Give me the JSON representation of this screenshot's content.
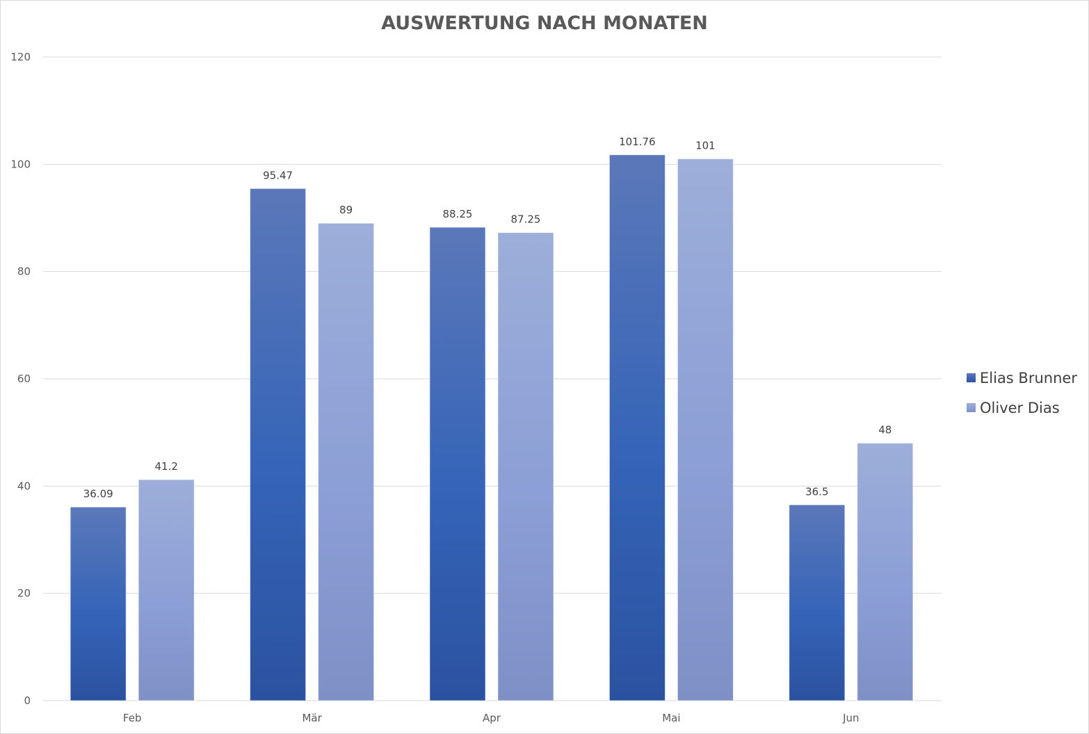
{
  "chart_data": {
    "type": "bar",
    "title": "AUSWERTUNG NACH MONATEN",
    "categories": [
      "Feb",
      "Mär",
      "Apr",
      "Mai",
      "Jun"
    ],
    "series": [
      {
        "name": "Elias Brunner",
        "values": [
          36.09,
          95.47,
          88.25,
          101.76,
          36.5
        ],
        "color_top": "#5b78b9",
        "color_mid": "#3564b8",
        "color_bottom": "#2b52a0"
      },
      {
        "name": "Oliver Dias",
        "values": [
          41.2,
          89,
          87.25,
          101,
          48
        ],
        "color_top": "#9daed9",
        "color_mid": "#8c9fd6",
        "color_bottom": "#7e90c6"
      }
    ],
    "ylim": [
      0,
      120
    ],
    "yticks": [
      0,
      20,
      40,
      60,
      80,
      100,
      120
    ],
    "grid": true,
    "legend_position": "right",
    "xlabel": "",
    "ylabel": ""
  }
}
